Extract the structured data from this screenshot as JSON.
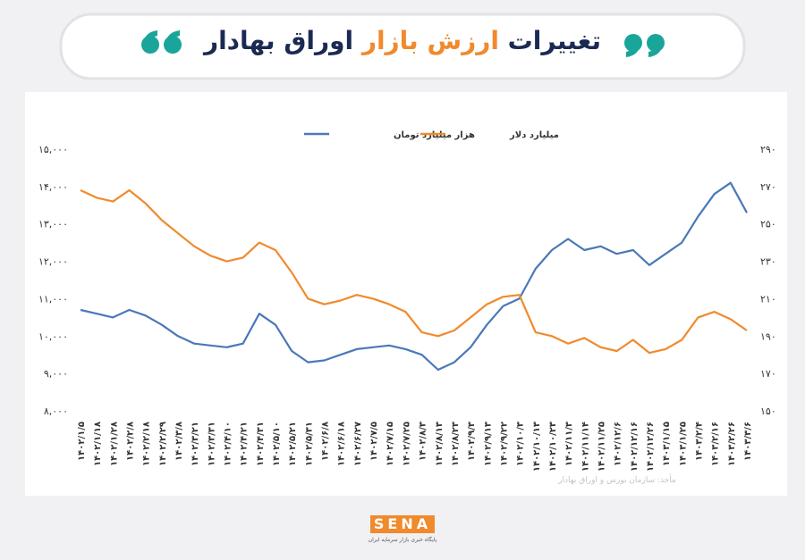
{
  "header": {
    "title_start": "تغییرات",
    "title_highlight": "ارزش بازار",
    "title_end": "اوراق بهادار"
  },
  "chart_data": {
    "type": "line",
    "categories": [
      "۱۴۰۲/۱/۵",
      "۱۴۰۲/۱/۱۸",
      "۱۴۰۲/۱/۲۸",
      "۱۴۰۲/۲/۸",
      "۱۴۰۲/۲/۱۸",
      "۱۴۰۲/۲/۲۹",
      "۱۴۰۲/۳/۸",
      "۱۴۰۲/۳/۲۱",
      "۱۴۰۲/۳/۳۱",
      "۱۴۰۲/۴/۱۰",
      "۱۴۰۲/۴/۲۱",
      "۱۴۰۲/۴/۳۱",
      "۱۴۰۲/۵/۱۰",
      "۱۴۰۲/۵/۲۱",
      "۱۴۰۲/۵/۳۱",
      "۱۴۰۲/۶/۸",
      "۱۴۰۲/۶/۱۸",
      "۱۴۰۲/۶/۲۷",
      "۱۴۰۲/۷/۵",
      "۱۴۰۲/۷/۱۵",
      "۱۴۰۲/۷/۲۵",
      "۱۴۰۲/۸/۳",
      "۱۴۰۲/۸/۱۳",
      "۱۴۰۲/۸/۲۳",
      "۱۴۰۲/۹/۳",
      "۱۴۰۲/۹/۱۳",
      "۱۴۰۲/۹/۲۲",
      "۱۴۰۲/۱۰/۳",
      "۱۴۰۲/۱۰/۱۳",
      "۱۴۰۲/۱۰/۲۳",
      "۱۴۰۲/۱۱/۳",
      "۱۴۰۲/۱۱/۱۴",
      "۱۴۰۲/۱۱/۲۵",
      "۱۴۰۲/۱۲/۶",
      "۱۴۰۲/۱۲/۱۶",
      "۱۴۰۲/۱۲/۲۶",
      "۱۴۰۳/۱/۱۵",
      "۱۴۰۳/۱/۲۵",
      "۱۴۰۳/۲/۴",
      "۱۴۰۳/۲/۱۶",
      "۱۴۰۳/۲/۲۶",
      "۱۴۰۳/۳/۶"
    ],
    "series": [
      {
        "name": "هزار میلیارد تومان",
        "color": "#4a78b9",
        "values": [
          10700,
          10600,
          10500,
          10700,
          10550,
          10300,
          10000,
          9800,
          9750,
          9700,
          9800,
          10600,
          10300,
          9600,
          9300,
          9350,
          9500,
          9650,
          9700,
          9750,
          9650,
          9500,
          9100,
          9300,
          9700,
          10300,
          10800,
          11000,
          11800,
          12300,
          12600,
          12300,
          12400,
          12200,
          12300,
          11900,
          12200,
          12500,
          13200,
          13800,
          14100,
          13300
        ]
      },
      {
        "name": "میلیارد دلار",
        "color": "#f08a2c",
        "axis": "y2",
        "values": [
          268,
          264,
          262,
          268,
          261,
          252,
          245,
          238,
          233,
          230,
          232,
          240,
          236,
          224,
          210,
          207,
          209,
          212,
          210,
          207,
          203,
          192,
          190,
          193,
          200,
          207,
          211,
          212,
          192,
          190,
          186,
          189,
          184,
          182,
          188,
          181,
          183,
          188,
          200,
          203,
          199,
          193
        ]
      }
    ],
    "ylim": [
      8000,
      15000
    ],
    "yticks": [
      {
        "value": 8000,
        "label": "۸,۰۰۰"
      },
      {
        "value": 9000,
        "label": "۹,۰۰۰"
      },
      {
        "value": 10000,
        "label": "۱۰,۰۰۰"
      },
      {
        "value": 11000,
        "label": "۱۱,۰۰۰"
      },
      {
        "value": 12000,
        "label": "۱۲,۰۰۰"
      },
      {
        "value": 13000,
        "label": "۱۳,۰۰۰"
      },
      {
        "value": 14000,
        "label": "۱۴,۰۰۰"
      },
      {
        "value": 15000,
        "label": "۱۵,۰۰۰"
      }
    ],
    "y2lim": [
      150,
      290
    ],
    "y2ticks": [
      {
        "value": 150,
        "label": "۱۵۰"
      },
      {
        "value": 170,
        "label": "۱۷۰"
      },
      {
        "value": 190,
        "label": "۱۹۰"
      },
      {
        "value": 210,
        "label": "۲۱۰"
      },
      {
        "value": 230,
        "label": "۲۳۰"
      },
      {
        "value": 250,
        "label": "۲۵۰"
      },
      {
        "value": 270,
        "label": "۲۷۰"
      },
      {
        "value": 290,
        "label": "۲۹۰"
      }
    ],
    "source": "مأخذ: سازمان بورس و اوراق بهادار"
  },
  "footer": {
    "logo": "SENA",
    "tagline": "پایگاه خبری بازار سرمایه ایران"
  }
}
